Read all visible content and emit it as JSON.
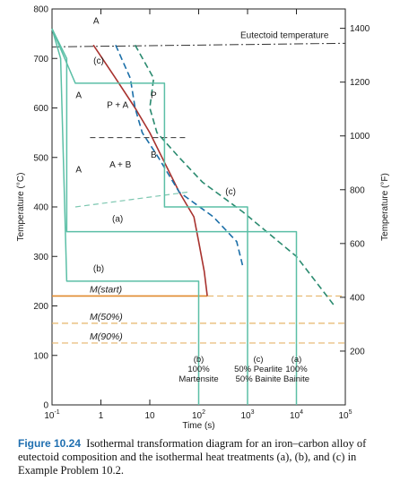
{
  "chart_data": {
    "type": "line",
    "title": "",
    "xlabel": "Time (s)",
    "ylabel_left": "Temperature (°C)",
    "ylabel_right": "Temperature (°F)",
    "x_scale": "log",
    "xlim": [
      0.1,
      100000
    ],
    "ylim": [
      0,
      800
    ],
    "y2lim": [
      0,
      1472
    ],
    "x_ticks": [
      {
        "value": 0.1,
        "base": "10",
        "exp": "-1"
      },
      {
        "value": 1,
        "base": "1",
        "exp": ""
      },
      {
        "value": 10,
        "base": "10",
        "exp": ""
      },
      {
        "value": 100,
        "base": "10",
        "exp": "2"
      },
      {
        "value": 1000,
        "base": "10",
        "exp": "3"
      },
      {
        "value": 10000,
        "base": "10",
        "exp": "4"
      },
      {
        "value": 100000,
        "base": "10",
        "exp": "5"
      }
    ],
    "y_ticks": [
      "0",
      "100",
      "200",
      "300",
      "400",
      "500",
      "600",
      "700",
      "800"
    ],
    "y2_ticks": [
      "200",
      "400",
      "600",
      "800",
      "1000",
      "1200",
      "1400"
    ],
    "eutectoid": {
      "label": "Eutectoid temperature",
      "value": 727
    },
    "ms_lines": [
      {
        "label": "M(start)",
        "value": 220
      },
      {
        "label": "M(50%)",
        "value": 165
      },
      {
        "label": "M(90%)",
        "value": 125
      }
    ],
    "series": [
      {
        "name": "",
        "style": "solid",
        "color": "#a8322e",
        "points": [
          [
            0.7,
            727
          ],
          [
            2,
            660
          ],
          [
            5,
            600
          ],
          [
            10,
            550
          ],
          [
            20,
            490
          ],
          [
            40,
            430
          ],
          [
            80,
            380
          ],
          [
            100,
            330
          ],
          [
            130,
            270
          ],
          [
            150,
            220
          ]
        ]
      },
      {
        "name": "",
        "style": "dashed",
        "color": "#1b6fa8",
        "points": [
          [
            2,
            727
          ],
          [
            4,
            660
          ],
          [
            5,
            600
          ],
          [
            7,
            550
          ],
          [
            15,
            500
          ],
          [
            40,
            430
          ],
          [
            200,
            380
          ],
          [
            600,
            330
          ],
          [
            800,
            280
          ]
        ]
      },
      {
        "name": "",
        "style": "dashed",
        "color": "#2a8a6f",
        "points": [
          [
            5,
            727
          ],
          [
            12,
            660
          ],
          [
            10,
            600
          ],
          [
            14,
            550
          ],
          [
            40,
            500
          ],
          [
            120,
            450
          ],
          [
            800,
            390
          ],
          [
            10000,
            300
          ],
          [
            60000,
            200
          ]
        ]
      }
    ],
    "heat_treatments": [
      {
        "label": "(a)",
        "points": [
          [
            0.1,
            760
          ],
          [
            0.2,
            700
          ],
          [
            0.2,
            350
          ],
          [
            10000,
            350
          ],
          [
            10000,
            0
          ]
        ]
      },
      {
        "label": "(b)",
        "points": [
          [
            0.1,
            760
          ],
          [
            0.15,
            700
          ],
          [
            0.2,
            250
          ],
          [
            100,
            250
          ],
          [
            100,
            0
          ]
        ]
      },
      {
        "label": "(c)",
        "points": [
          [
            0.1,
            760
          ],
          [
            0.3,
            650
          ],
          [
            20,
            650
          ],
          [
            20,
            400
          ],
          [
            1000,
            400
          ],
          [
            1000,
            0
          ]
        ]
      }
    ],
    "region_labels": [
      "A",
      "A",
      "A",
      "P + A",
      "A + B",
      "P",
      "B"
    ],
    "annotations": [
      "(c)",
      "(a)",
      "(b)",
      "(c)"
    ],
    "bottom_labels": [
      {
        "lines": [
          "(b)",
          "100%",
          "Martensite"
        ]
      },
      {
        "lines": [
          "(c)",
          "50% Pearlite",
          "50% Bainite"
        ]
      },
      {
        "lines": [
          "(a)",
          "100%",
          "Bainite"
        ]
      }
    ]
  },
  "caption": {
    "figure": "Figure 10.24",
    "text": "Isothermal transformation diagram for an iron–carbon alloy of eutectoid composition and the isothermal heat treatments (a), (b), and (c) in Example Problem 10.2."
  }
}
